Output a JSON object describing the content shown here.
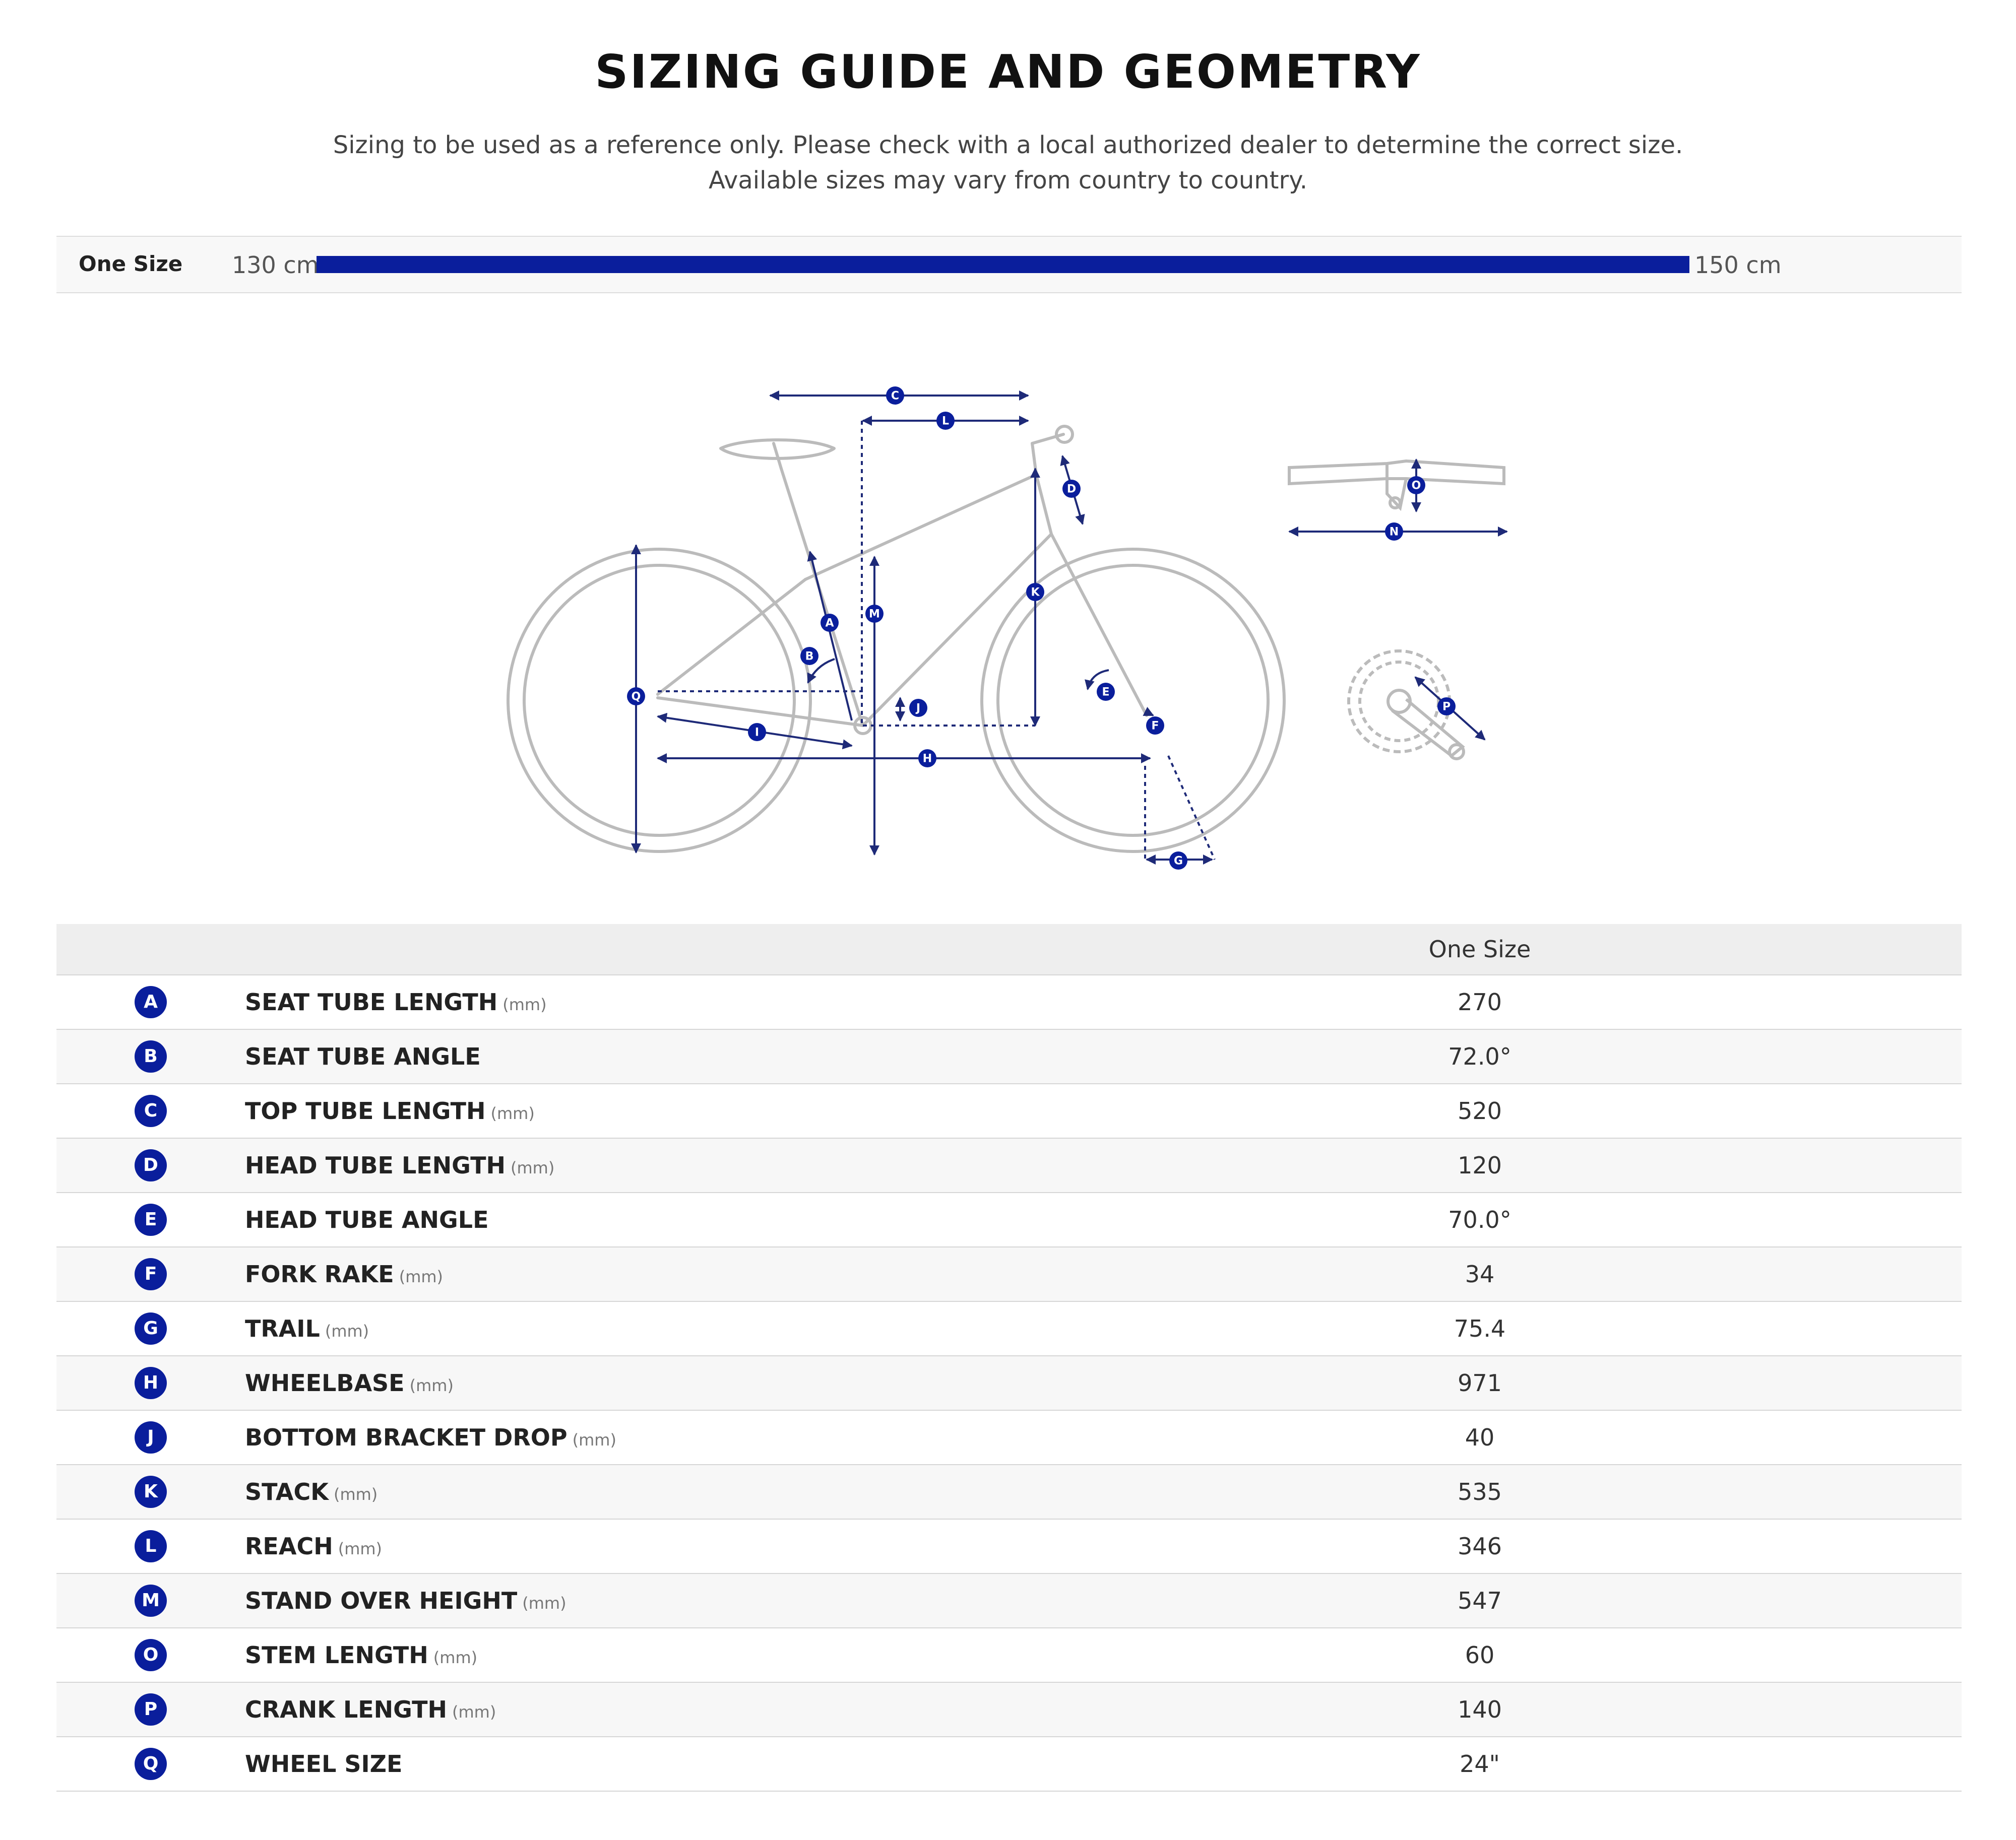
{
  "header": {
    "title": "SIZING GUIDE AND GEOMETRY",
    "subtitle_line1": "Sizing to be used as a reference only. Please check with a local authorized dealer to determine the correct size.",
    "subtitle_line2": "Available sizes may vary from country to country."
  },
  "size_chart": {
    "size_label": "One Size",
    "min_height": "130 cm",
    "max_height": "150 cm",
    "fill_fraction": 1.0
  },
  "colors": {
    "accent": "#0a1e9c",
    "diagram_line": "#bbbbbb",
    "diagram_dim": "#1e2a78"
  },
  "diagram": {
    "labels": [
      "C",
      "L",
      "D",
      "O",
      "N",
      "K",
      "M",
      "A",
      "B",
      "E",
      "J",
      "Q",
      "I",
      "H",
      "F",
      "G",
      "P"
    ]
  },
  "table": {
    "column_header": "One Size",
    "rows": [
      {
        "letter": "A",
        "name": "SEAT TUBE LENGTH",
        "unit": "(mm)",
        "value": "270"
      },
      {
        "letter": "B",
        "name": "SEAT TUBE ANGLE",
        "unit": "",
        "value": "72.0°"
      },
      {
        "letter": "C",
        "name": "TOP TUBE LENGTH",
        "unit": "(mm)",
        "value": "520"
      },
      {
        "letter": "D",
        "name": "HEAD TUBE LENGTH",
        "unit": "(mm)",
        "value": "120"
      },
      {
        "letter": "E",
        "name": "HEAD TUBE ANGLE",
        "unit": "",
        "value": "70.0°"
      },
      {
        "letter": "F",
        "name": "FORK RAKE",
        "unit": "(mm)",
        "value": "34"
      },
      {
        "letter": "G",
        "name": "TRAIL",
        "unit": "(mm)",
        "value": "75.4"
      },
      {
        "letter": "H",
        "name": "WHEELBASE",
        "unit": "(mm)",
        "value": "971"
      },
      {
        "letter": "J",
        "name": "BOTTOM BRACKET DROP",
        "unit": "(mm)",
        "value": "40"
      },
      {
        "letter": "K",
        "name": "STACK",
        "unit": "(mm)",
        "value": "535"
      },
      {
        "letter": "L",
        "name": "REACH",
        "unit": "(mm)",
        "value": "346"
      },
      {
        "letter": "M",
        "name": "STAND OVER HEIGHT",
        "unit": "(mm)",
        "value": "547"
      },
      {
        "letter": "O",
        "name": "STEM LENGTH",
        "unit": "(mm)",
        "value": "60"
      },
      {
        "letter": "P",
        "name": "CRANK LENGTH",
        "unit": "(mm)",
        "value": "140"
      },
      {
        "letter": "Q",
        "name": "WHEEL SIZE",
        "unit": "",
        "value": "24\""
      }
    ]
  }
}
